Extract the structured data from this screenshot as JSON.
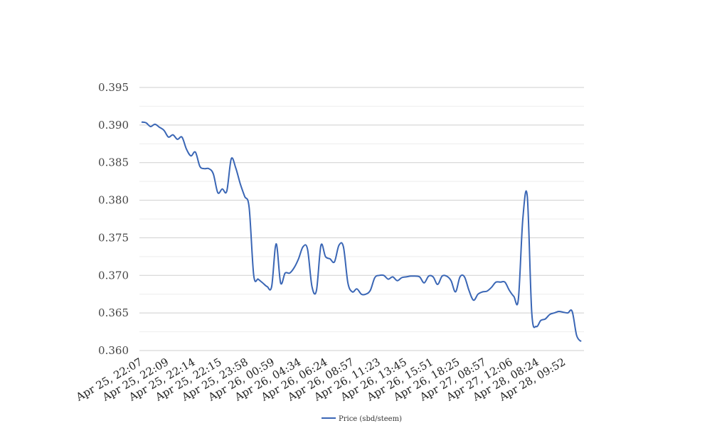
{
  "chart_data": {
    "type": "line",
    "title": "",
    "xlabel": "",
    "ylabel": "",
    "ylim": [
      0.36,
      0.395
    ],
    "y_ticks": [
      "0.360",
      "0.365",
      "0.370",
      "0.375",
      "0.380",
      "0.385",
      "0.390",
      "0.395"
    ],
    "x_tick_labels": [
      "Apr 25, 22:07",
      "Apr 25, 22:09",
      "Apr 25, 22:14",
      "Apr 25, 22:15",
      "Apr 25, 23:58",
      "Apr 26, 00:59",
      "Apr 26, 04:34",
      "Apr 26, 06:24",
      "Apr 26, 08:57",
      "Apr 26, 11:23",
      "Apr 26, 13:45",
      "Apr 26, 15:51",
      "Apr 26, 18:25",
      "Apr 27, 08:57",
      "Apr 27, 12:06",
      "Apr 28, 08:24",
      "Apr 28, 09:52"
    ],
    "grid": true,
    "legend_position": "bottom",
    "colors": {
      "line": "#3a66b5",
      "grid": "#cfcfcf",
      "minor_grid": "#eeeeee"
    },
    "series": [
      {
        "name": "Price (sbd/steem)",
        "values": [
          0.3904,
          0.3903,
          0.3898,
          0.3901,
          0.3897,
          0.3893,
          0.3884,
          0.3887,
          0.3881,
          0.3884,
          0.3868,
          0.3859,
          0.3864,
          0.3845,
          0.3842,
          0.3842,
          0.3835,
          0.381,
          0.3815,
          0.3812,
          0.3855,
          0.3843,
          0.3822,
          0.3805,
          0.379,
          0.37,
          0.3695,
          0.369,
          0.3685,
          0.3685,
          0.3742,
          0.369,
          0.3703,
          0.3703,
          0.371,
          0.3722,
          0.3738,
          0.3735,
          0.3685,
          0.368,
          0.374,
          0.3725,
          0.3722,
          0.3718,
          0.374,
          0.3738,
          0.369,
          0.3678,
          0.3682,
          0.3675,
          0.3675,
          0.368,
          0.3697,
          0.37,
          0.37,
          0.3695,
          0.3698,
          0.3693,
          0.3697,
          0.3698,
          0.3699,
          0.3699,
          0.3698,
          0.369,
          0.3699,
          0.3698,
          0.3688,
          0.3699,
          0.3699,
          0.3693,
          0.3678,
          0.3698,
          0.3698,
          0.368,
          0.3667,
          0.3675,
          0.3678,
          0.3679,
          0.3684,
          0.3691,
          0.3691,
          0.3691,
          0.368,
          0.3672,
          0.3668,
          0.3775,
          0.3805,
          0.365,
          0.3632,
          0.364,
          0.3642,
          0.3648,
          0.365,
          0.3652,
          0.3651,
          0.365,
          0.3652,
          0.362,
          0.3612
        ]
      }
    ]
  }
}
